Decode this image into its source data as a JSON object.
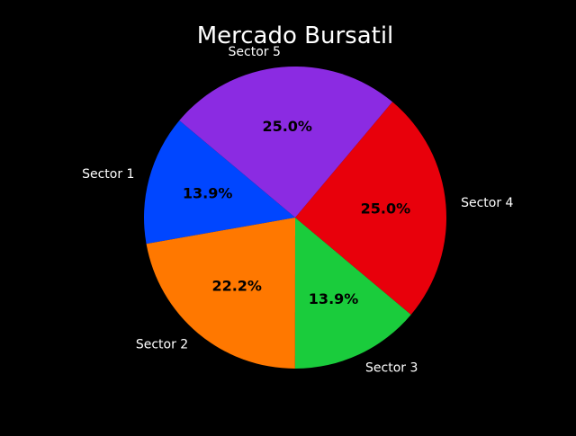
{
  "chart_data": {
    "type": "pie",
    "title": "Mercado Bursatil",
    "categories": [
      "Sector 1",
      "Sector 2",
      "Sector 3",
      "Sector 4",
      "Sector 5"
    ],
    "values": [
      13.9,
      22.2,
      13.9,
      25.0,
      25.0
    ],
    "value_labels": [
      "13.9%",
      "22.2%",
      "13.9%",
      "25.0%",
      "25.0%"
    ],
    "colors": [
      "#0046ff",
      "#ff7800",
      "#1acc3c",
      "#e8000b",
      "#8b2be2"
    ],
    "start_angle_deg": 140,
    "direction": "counterclockwise",
    "background": "#000000"
  }
}
